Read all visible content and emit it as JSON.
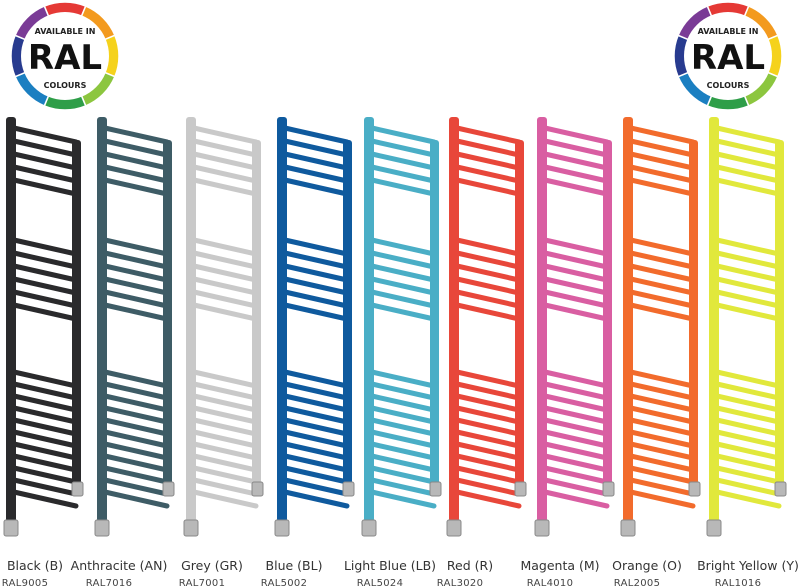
{
  "badges": [
    {
      "top": "AVAILABLE IN",
      "main": "RAL",
      "bottom": "COLOURS"
    },
    {
      "top": "AVAILABLE IN",
      "main": "RAL",
      "bottom": "COLOURS"
    }
  ],
  "radiators": [
    {
      "name": "Black (B)",
      "code": "RAL9005",
      "color": "#2a2a2c"
    },
    {
      "name": "Anthracite (AN)",
      "code": "RAL7016",
      "color": "#3e5c66"
    },
    {
      "name": "Grey (GR)",
      "code": "RAL7001",
      "color": "#c9c9c9"
    },
    {
      "name": "Blue (BL)",
      "code": "RAL5002",
      "color": "#0f5a9e"
    },
    {
      "name": "Light Blue (LB)",
      "code": "RAL5024",
      "color": "#4aaec6"
    },
    {
      "name": "Red (R)",
      "code": "RAL3020",
      "color": "#e8473a"
    },
    {
      "name": "Magenta (M)",
      "code": "RAL4010",
      "color": "#d95ea2"
    },
    {
      "name": "Orange (O)",
      "code": "RAL2005",
      "color": "#f26b2c"
    },
    {
      "name": "Bright Yellow (Y)",
      "code": "RAL1016",
      "color": "#e1e83c"
    }
  ]
}
